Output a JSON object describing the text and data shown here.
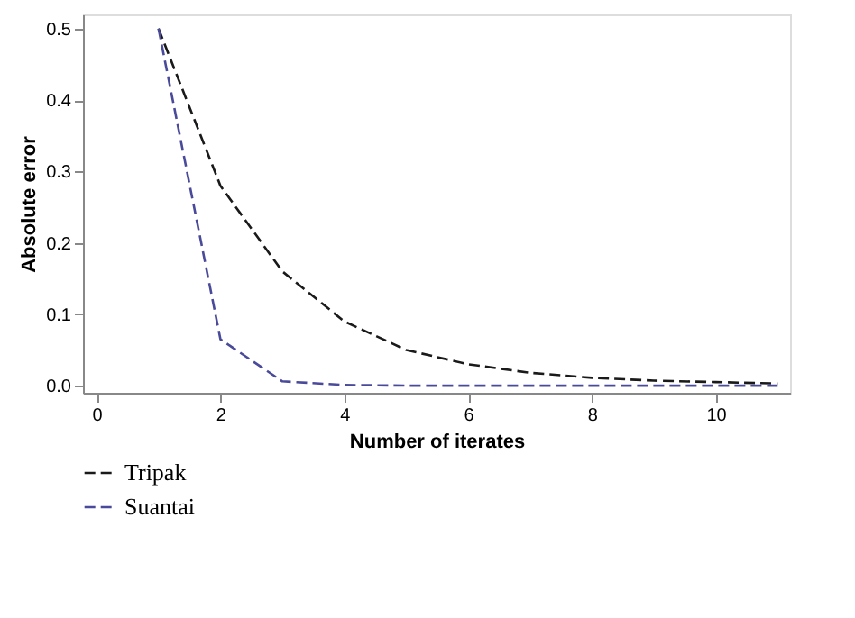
{
  "chart_data": {
    "type": "line",
    "xlabel": "Number of iterates",
    "ylabel": "Absolute error",
    "x": [
      1,
      2,
      3,
      4,
      5,
      6,
      7,
      8,
      9,
      10,
      11
    ],
    "series": [
      {
        "name": "Tripak",
        "color": "#1a1a1a",
        "values": [
          0.5,
          0.28,
          0.16,
          0.09,
          0.05,
          0.03,
          0.018,
          0.011,
          0.007,
          0.005,
          0.003
        ]
      },
      {
        "name": "Suantai",
        "color": "#4a4a9a",
        "values": [
          0.5,
          0.065,
          0.006,
          0.001,
          0.0,
          0.0,
          0.0,
          0.0,
          0.0,
          0.0,
          0.0
        ]
      }
    ],
    "xlim": [
      -0.22,
      11.2
    ],
    "xticks": [
      0,
      2,
      4,
      6,
      8,
      10
    ],
    "ylim": [
      -0.01,
      0.52
    ],
    "yticks": [
      {
        "value": 0,
        "label": "0.0"
      },
      0.1,
      0.2,
      0.3,
      0.4,
      0.5
    ],
    "grid": false,
    "legend": "bottom left",
    "line_style": "dashed",
    "marker": "none"
  }
}
